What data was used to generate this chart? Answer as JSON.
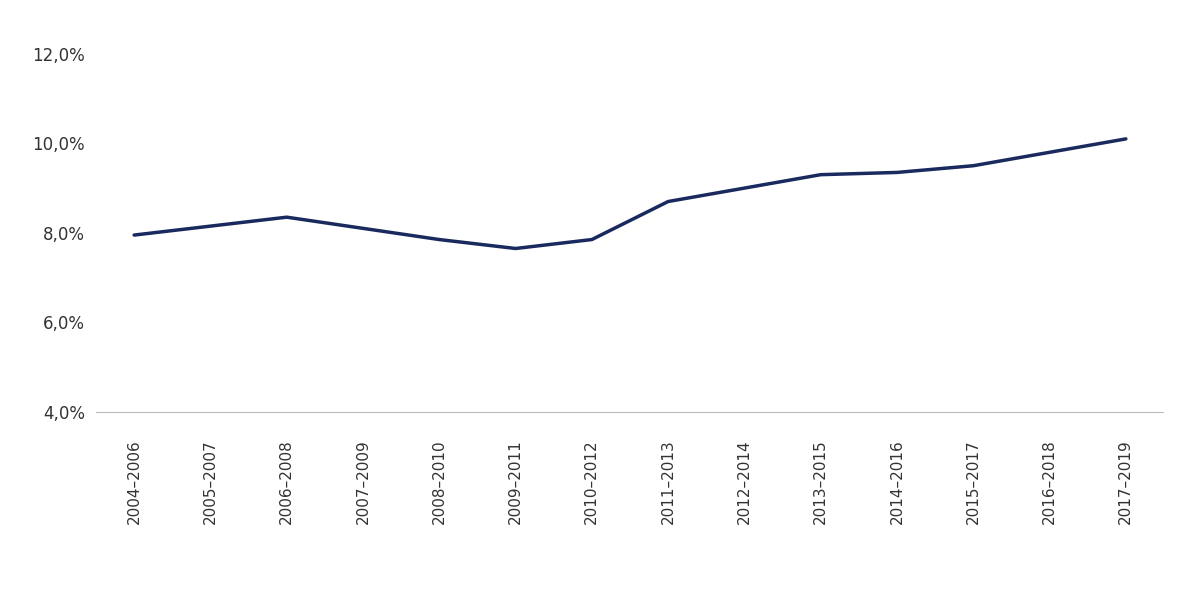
{
  "categories": [
    "2004–2006",
    "2005–2007",
    "2006–2008",
    "2007–2009",
    "2008–2010",
    "2009–2011",
    "2010–2012",
    "2011–2013",
    "2012–2014",
    "2013–2015",
    "2014–2016",
    "2015–2017",
    "2016–2018",
    "2017–2019"
  ],
  "values": [
    7.95,
    8.15,
    8.35,
    8.1,
    7.85,
    7.65,
    7.85,
    8.7,
    9.0,
    9.3,
    9.35,
    9.5,
    9.8,
    10.1
  ],
  "line_color": "#1a2a5e",
  "line_width": 2.5,
  "yticks": [
    4.0,
    6.0,
    8.0,
    10.0,
    12.0
  ],
  "ylim": [
    3.5,
    12.8
  ],
  "xlim": [
    -0.5,
    13.5
  ],
  "background_color": "#ffffff",
  "bottom_line_color": "#bbbbbb",
  "tick_label_fontsize": 12,
  "tick_label_color": "#333333",
  "xlabel_fontsize": 11
}
